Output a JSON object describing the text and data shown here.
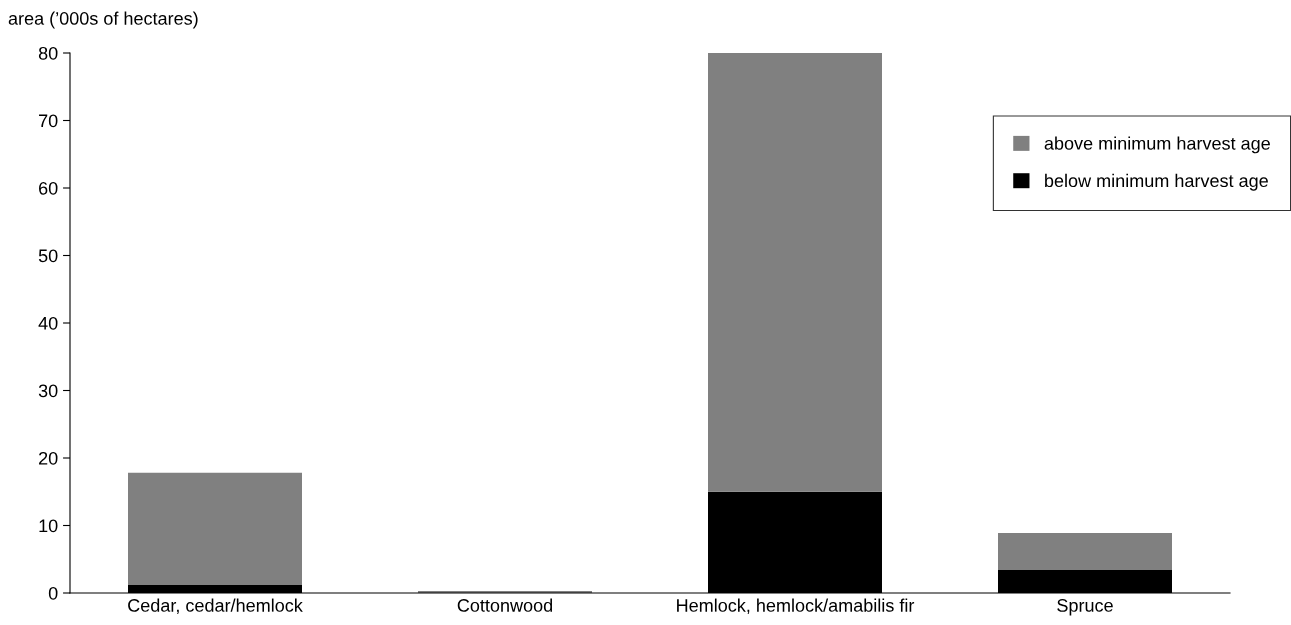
{
  "chart_data": {
    "type": "bar",
    "stacked": true,
    "ylabel": "area (’000s of hectares)",
    "categories": [
      "Cedar, cedar/hemlock",
      "Cottonwood",
      "Hemlock, hemlock/amabilis fir",
      "Spruce"
    ],
    "series": [
      {
        "name": "below minimum harvest age",
        "color": "#000000",
        "values": [
          1.2,
          0,
          15,
          3.4
        ]
      },
      {
        "name": "above minimum harvest age",
        "color": "#808080",
        "values": [
          16.6,
          0.3,
          65,
          5.5
        ]
      }
    ],
    "ylim": [
      0,
      80
    ],
    "yticks": [
      0,
      10,
      20,
      30,
      40,
      50,
      60,
      70,
      80
    ],
    "grid": false,
    "legend": "top right"
  }
}
